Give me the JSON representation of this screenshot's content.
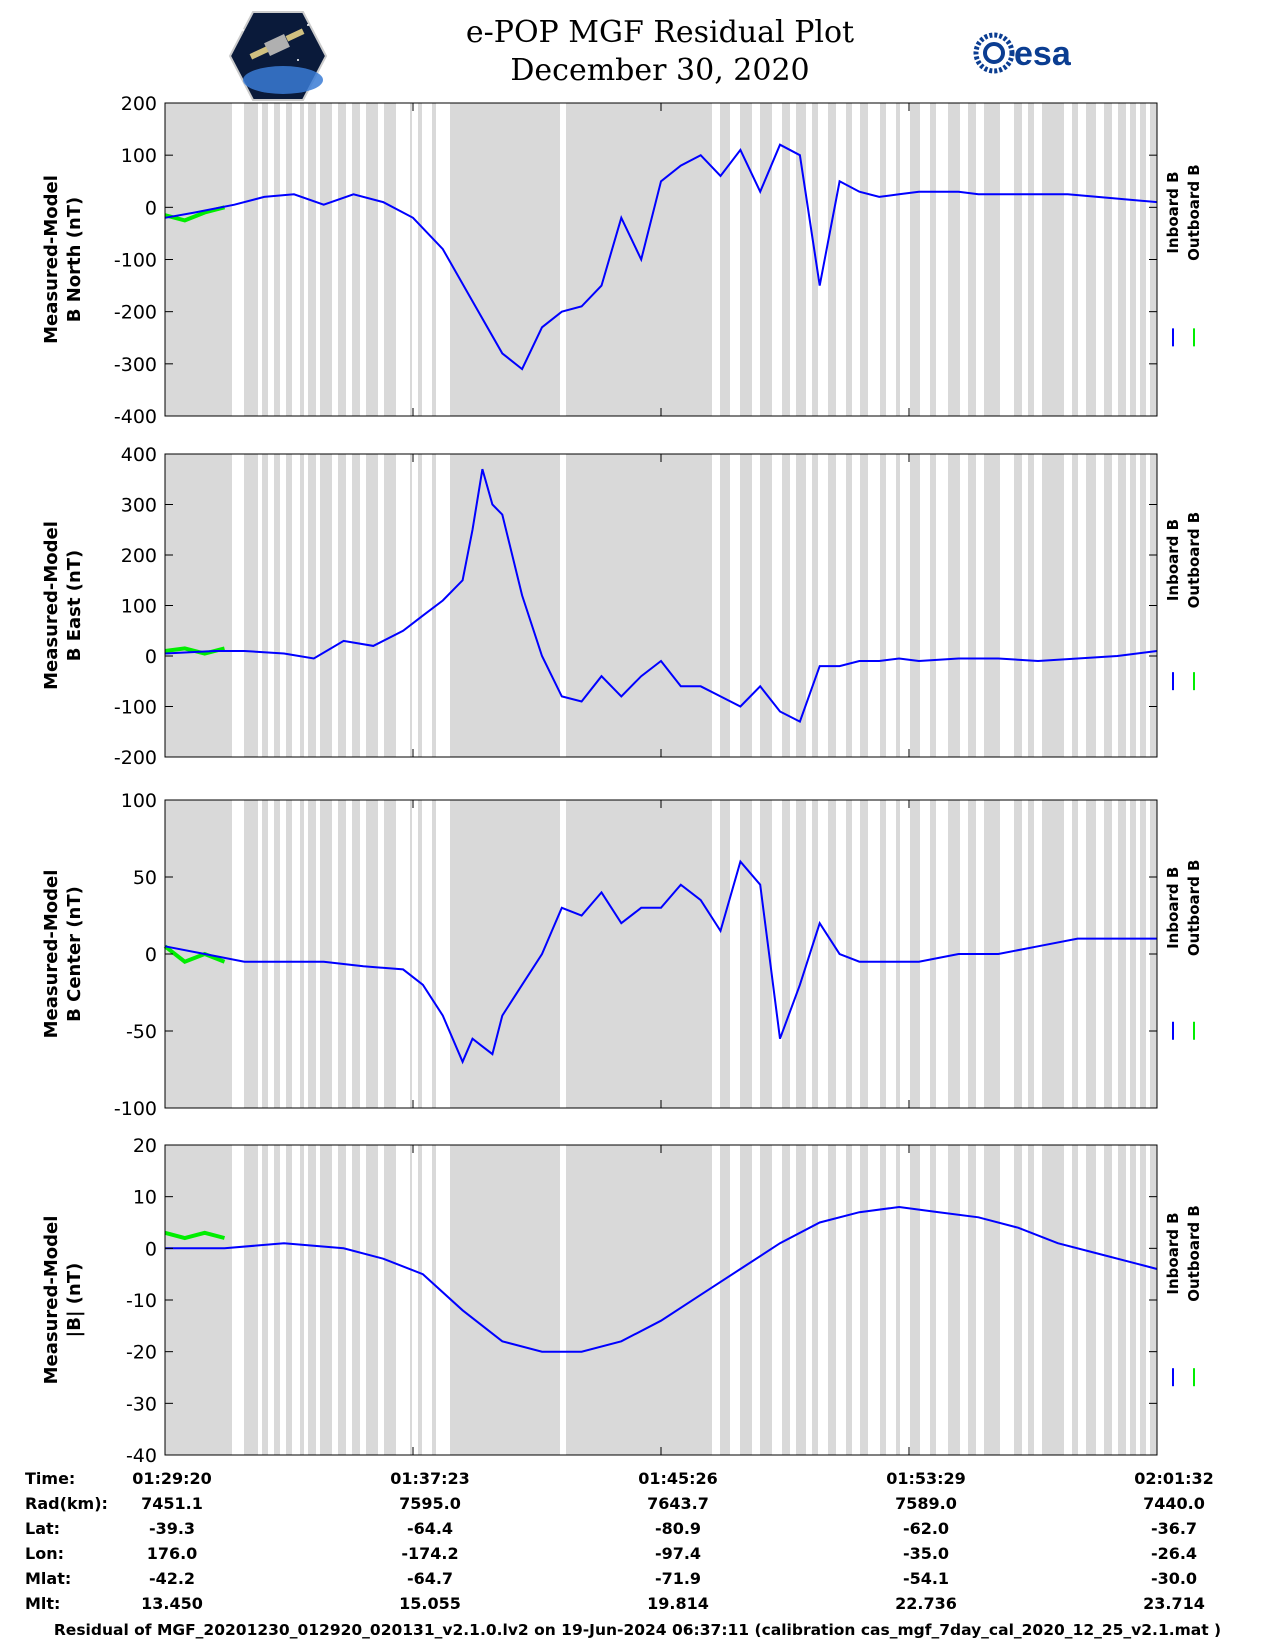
{
  "header": {
    "title": "e-POP MGF Residual Plot",
    "date": "December 30, 2020",
    "left_logo": "cassiope-mission-logo",
    "right_logo": "esa-logo",
    "right_logo_text": "esa"
  },
  "colors": {
    "inboard": "#0000ff",
    "outboard": "#00ee00",
    "gap_shade": "#d9d9d9",
    "axis": "#000000"
  },
  "chart_data": [
    {
      "type": "line",
      "ylabel_line1": "Measured-Model",
      "ylabel_line2": "B North (nT)",
      "ylim": [
        -400,
        200
      ],
      "yticks": [
        "200",
        "100",
        "0",
        "-100",
        "-200",
        "-300",
        "-400"
      ],
      "ytick_values": [
        200,
        100,
        0,
        -100,
        -200,
        -300,
        -400
      ],
      "legend": [
        "Inboard B",
        "Outboard B"
      ],
      "series": [
        {
          "name": "Inboard B",
          "x": [
            0,
            3,
            7,
            10,
            13,
            16,
            19,
            22,
            25,
            28,
            31,
            34,
            36,
            38,
            40,
            42,
            44,
            46,
            48,
            50,
            52,
            54,
            56,
            58,
            60,
            62,
            64,
            66,
            68,
            70,
            72,
            74,
            76,
            78,
            80,
            82,
            85,
            88,
            91,
            94,
            97,
            100
          ],
          "y": [
            -20,
            -10,
            5,
            20,
            25,
            5,
            25,
            10,
            -20,
            -80,
            -180,
            -280,
            -310,
            -230,
            -200,
            -190,
            -150,
            -20,
            -100,
            50,
            80,
            100,
            60,
            110,
            30,
            120,
            100,
            -150,
            50,
            30,
            20,
            25,
            30,
            30,
            30,
            25,
            25,
            25,
            25,
            20,
            15,
            10
          ]
        },
        {
          "name": "Outboard B",
          "x": [
            0,
            2,
            4,
            6
          ],
          "y": [
            -15,
            -25,
            -10,
            0
          ]
        }
      ]
    },
    {
      "type": "line",
      "ylabel_line1": "Measured-Model",
      "ylabel_line2": "B East (nT)",
      "ylim": [
        -200,
        400
      ],
      "yticks": [
        "400",
        "300",
        "200",
        "100",
        "0",
        "-100",
        "-200"
      ],
      "ytick_values": [
        400,
        300,
        200,
        100,
        0,
        -100,
        -200
      ],
      "legend": [
        "Inboard B",
        "Outboard B"
      ],
      "series": [
        {
          "name": "Inboard B",
          "x": [
            0,
            5,
            8,
            12,
            15,
            18,
            21,
            24,
            26,
            28,
            30,
            31,
            32,
            33,
            34,
            36,
            38,
            40,
            42,
            44,
            46,
            48,
            50,
            52,
            54,
            56,
            58,
            60,
            62,
            64,
            66,
            68,
            70,
            72,
            74,
            76,
            80,
            84,
            88,
            92,
            96,
            100
          ],
          "y": [
            5,
            10,
            10,
            5,
            -5,
            30,
            20,
            50,
            80,
            110,
            150,
            250,
            370,
            300,
            280,
            120,
            0,
            -80,
            -90,
            -40,
            -80,
            -40,
            -10,
            -60,
            -60,
            -80,
            -100,
            -60,
            -110,
            -130,
            -20,
            -20,
            -10,
            -10,
            -5,
            -10,
            -5,
            -5,
            -10,
            -5,
            0,
            10
          ]
        },
        {
          "name": "Outboard B",
          "x": [
            0,
            2,
            4,
            6
          ],
          "y": [
            10,
            15,
            5,
            15
          ]
        }
      ]
    },
    {
      "type": "line",
      "ylabel_line1": "Measured-Model",
      "ylabel_line2": "B Center (nT)",
      "ylim": [
        -100,
        100
      ],
      "yticks": [
        "100",
        "50",
        "0",
        "-50",
        "-100"
      ],
      "ytick_values": [
        100,
        50,
        0,
        -50,
        -100
      ],
      "legend": [
        "Inboard B",
        "Outboard B"
      ],
      "series": [
        {
          "name": "Inboard B",
          "x": [
            0,
            4,
            8,
            12,
            16,
            20,
            24,
            26,
            28,
            30,
            31,
            32,
            33,
            34,
            35,
            36,
            38,
            39,
            40,
            42,
            44,
            46,
            48,
            50,
            52,
            54,
            56,
            58,
            60,
            62,
            64,
            66,
            68,
            70,
            72,
            76,
            80,
            84,
            88,
            92,
            96,
            100
          ],
          "y": [
            5,
            0,
            -5,
            -5,
            -5,
            -8,
            -10,
            -20,
            -40,
            -70,
            -55,
            -60,
            -65,
            -40,
            -30,
            -20,
            0,
            15,
            30,
            25,
            40,
            20,
            30,
            30,
            45,
            35,
            15,
            60,
            45,
            -55,
            -20,
            20,
            0,
            -5,
            -5,
            -5,
            0,
            0,
            5,
            10,
            10,
            10
          ]
        },
        {
          "name": "Outboard B",
          "x": [
            0,
            2,
            4,
            6
          ],
          "y": [
            5,
            -5,
            0,
            -5
          ]
        }
      ]
    },
    {
      "type": "line",
      "ylabel_line1": "Measured-Model",
      "ylabel_line2": "|B| (nT)",
      "ylim": [
        -40,
        20
      ],
      "yticks": [
        "20",
        "10",
        "0",
        "-10",
        "-20",
        "-30",
        "-40"
      ],
      "ytick_values": [
        20,
        10,
        0,
        -10,
        -20,
        -30,
        -40
      ],
      "legend": [
        "Inboard B",
        "Outboard B"
      ],
      "series": [
        {
          "name": "Inboard B",
          "x": [
            0,
            6,
            12,
            18,
            22,
            26,
            30,
            34,
            38,
            42,
            46,
            50,
            54,
            58,
            62,
            66,
            70,
            74,
            78,
            82,
            86,
            90,
            94,
            98,
            100
          ],
          "y": [
            0,
            0,
            1,
            0,
            -2,
            -5,
            -12,
            -18,
            -20,
            -20,
            -18,
            -14,
            -9,
            -4,
            1,
            5,
            7,
            8,
            7,
            6,
            4,
            1,
            -1,
            -3,
            -4
          ]
        },
        {
          "name": "Outboard B",
          "x": [
            0,
            2,
            4,
            6
          ],
          "y": [
            3,
            2,
            3,
            2
          ]
        }
      ]
    }
  ],
  "footer": {
    "labels": [
      "Time:",
      "Rad(km):",
      "Lat:",
      "Lon:",
      "Mlat:",
      "Mlt:"
    ],
    "columns": [
      [
        "01:29:20",
        "7451.1",
        "-39.3",
        "176.0",
        "-42.2",
        "13.450"
      ],
      [
        "01:37:23",
        "7595.0",
        "-64.4",
        "-174.2",
        "-64.7",
        "15.055"
      ],
      [
        "01:45:26",
        "7643.7",
        "-80.9",
        "-97.4",
        "-71.9",
        "19.814"
      ],
      [
        "01:53:29",
        "7589.0",
        "-62.0",
        "-35.0",
        "-54.1",
        "22.736"
      ],
      [
        "02:01:32",
        "7440.0",
        "-36.7",
        "-26.4",
        "-30.0",
        "23.714"
      ]
    ],
    "caption": "Residual of MGF_20201230_012920_020131_v2.1.0.lv2 on 19-Jun-2024 06:37:11 (calibration cas_mgf_7day_cal_2020_12_25_v2.1.mat )"
  }
}
